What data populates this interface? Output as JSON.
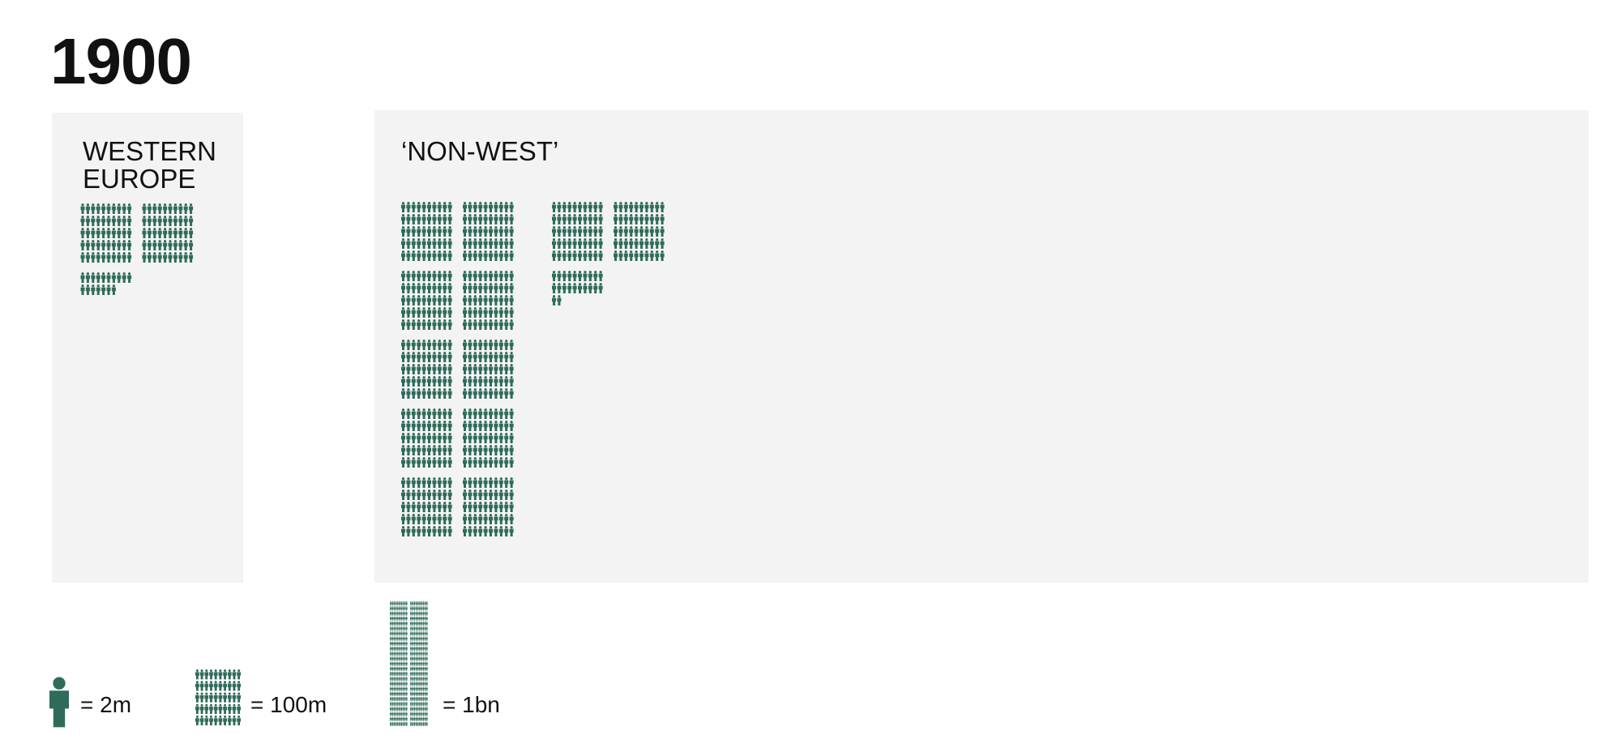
{
  "chart_data": {
    "type": "isotype",
    "title": "1900",
    "color": "#2f6b5a",
    "series": [
      {
        "name": "WESTERN EUROPE",
        "values": [
          234
        ]
      },
      {
        "name": "‘NON-WEST’",
        "values": [
          1244
        ]
      }
    ],
    "legend": [
      {
        "value": 2,
        "label": "= 2m"
      },
      {
        "value": 100,
        "label": "= 100m"
      },
      {
        "value": 1000,
        "label": "= 1bn"
      }
    ]
  }
}
